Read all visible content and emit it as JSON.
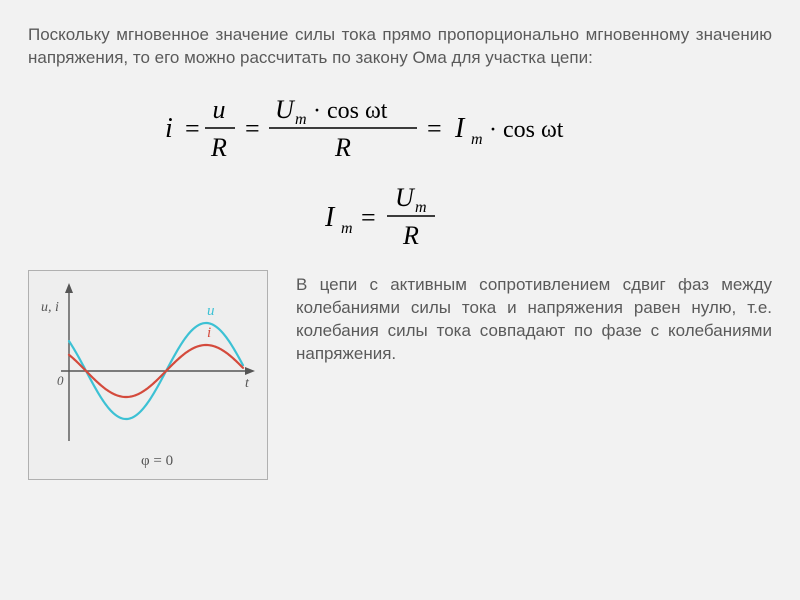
{
  "intro_text": "Поскольку мгновенное значение силы тока прямо пропорционально мгновенному значению напряжения, то его можно рассчитать по закону Ома для участка цепи:",
  "formula1": {
    "lhs": "i",
    "frac1_num": "u",
    "frac1_den": "R",
    "frac2_num_pre": "U",
    "frac2_num_sub": "m",
    "frac2_num_post": "· cos ωt",
    "frac2_den": "R",
    "rhs_pre": "I",
    "rhs_sub": "m",
    "rhs_post": "· cos ωt",
    "text_color": "#000000",
    "fontsize": 26
  },
  "formula2": {
    "lhs_pre": "I",
    "lhs_sub": "m",
    "num_pre": "U",
    "num_sub": "m",
    "den": "R",
    "text_color": "#000000",
    "fontsize": 26
  },
  "graph": {
    "bg": "#eeeeee",
    "axis_color": "#555555",
    "u_color": "#3cc1d4",
    "i_color": "#d44a3c",
    "u_label": "u",
    "i_label": "i",
    "y_label": "u, i",
    "x_label": "t",
    "origin_label": "0",
    "phi_label": "φ = 0",
    "u_amp": 48,
    "i_amp": 26,
    "period": 160,
    "phase0": 0.9
  },
  "para2_text": "В цепи с активным сопротивлением сдвиг фаз между колебаниями силы тока и напряжения равен нулю, т.е. колебания силы тока совпадают по фазе с колебаниями напряжения."
}
